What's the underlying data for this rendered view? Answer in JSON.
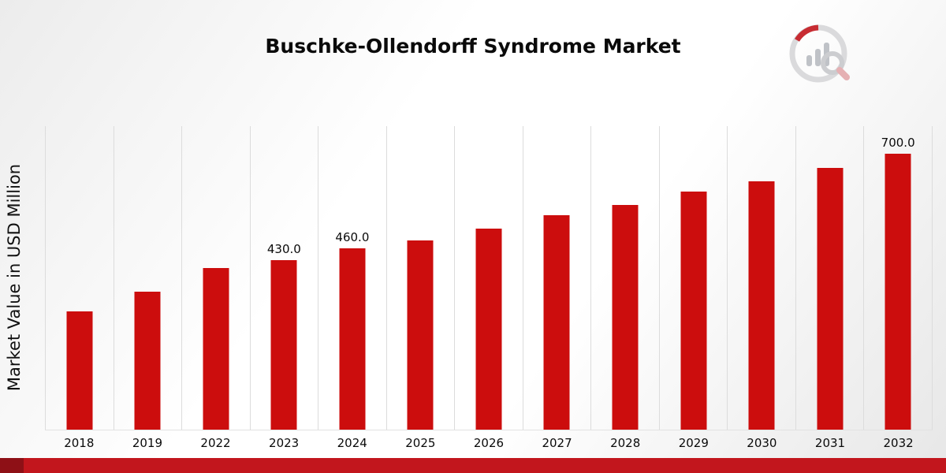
{
  "page": {
    "title": "Buschke-Ollendorff Syndrome Market",
    "brand_accent_color": "#c2161d",
    "brand_accent_dark": "#8e1016"
  },
  "chart_data": {
    "type": "bar",
    "title": "Buschke-Ollendorff Syndrome Market",
    "xlabel": "",
    "ylabel": "Market Value in USD Million",
    "categories": [
      "2018",
      "2019",
      "2022",
      "2023",
      "2024",
      "2025",
      "2026",
      "2027",
      "2028",
      "2029",
      "2030",
      "2031",
      "2032"
    ],
    "values": [
      300,
      350,
      410,
      430,
      460,
      480,
      510,
      545,
      570,
      605,
      630,
      665,
      700
    ],
    "data_labels": [
      "",
      "",
      "",
      "430.0",
      "460.0",
      "",
      "",
      "",
      "",
      "",
      "",
      "",
      "700.0"
    ],
    "ylim": [
      0,
      770
    ],
    "bar_color": "#cc0d0d",
    "grid": "vertical-category-separators",
    "legend": "none"
  }
}
